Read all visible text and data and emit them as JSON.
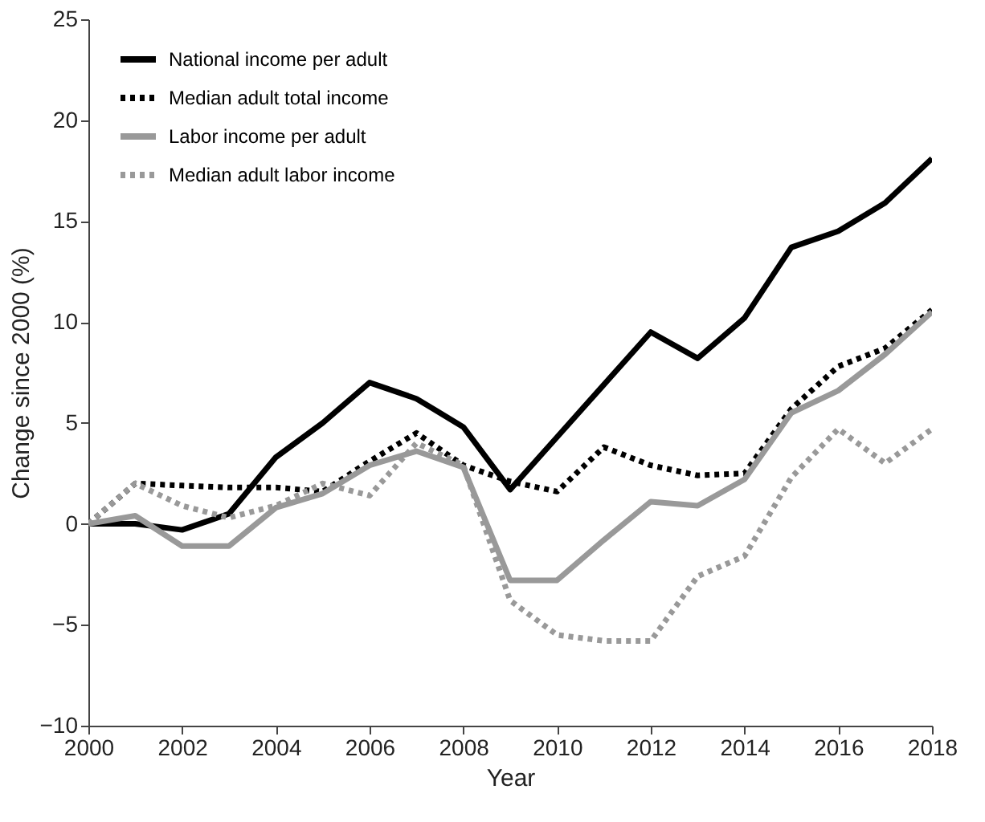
{
  "chart_data": {
    "type": "line",
    "xlabel": "Year",
    "ylabel": "Change since 2000 (%)",
    "x": [
      2000,
      2001,
      2002,
      2003,
      2004,
      2005,
      2006,
      2007,
      2008,
      2009,
      2010,
      2011,
      2012,
      2013,
      2014,
      2015,
      2016,
      2017,
      2018
    ],
    "xlim": [
      2000,
      2018
    ],
    "xticks": [
      2000,
      2002,
      2004,
      2006,
      2008,
      2010,
      2012,
      2014,
      2016,
      2018
    ],
    "ylim": [
      -10,
      25
    ],
    "yticks": [
      -10,
      -5,
      0,
      5,
      10,
      15,
      20,
      25
    ],
    "grid": false,
    "legend": "top left",
    "series": [
      {
        "name": "National income per adult",
        "color": "#000000",
        "line_style": "solid",
        "values": [
          0,
          0,
          -0.3,
          0.5,
          3.3,
          5,
          7,
          6.2,
          4.8,
          1.7,
          4.3,
          6.9,
          9.5,
          8.2,
          10.2,
          13.7,
          14.5,
          15.9,
          18.1
        ]
      },
      {
        "name": "Median adult total income",
        "color": "#000000",
        "line_style": "dotted",
        "values": [
          0,
          2,
          1.9,
          1.8,
          1.8,
          1.6,
          3.1,
          4.5,
          2.9,
          2.1,
          1.6,
          3.8,
          2.9,
          2.4,
          2.5,
          5.7,
          7.8,
          8.7,
          10.6
        ]
      },
      {
        "name": "Labor income per adult",
        "color": "#999999",
        "line_style": "solid",
        "values": [
          0,
          0.4,
          -1.1,
          -1.1,
          0.8,
          1.5,
          2.9,
          3.6,
          2.8,
          -2.8,
          -2.8,
          -0.8,
          1.1,
          0.9,
          2.2,
          5.5,
          6.6,
          8.4,
          10.5
        ]
      },
      {
        "name": "Median adult labor income",
        "color": "#999999",
        "line_style": "dotted",
        "values": [
          0,
          2,
          0.9,
          0.3,
          0.9,
          2,
          1.4,
          4,
          2.9,
          -3.8,
          -5.5,
          -5.8,
          -5.8,
          -2.6,
          -1.6,
          2.3,
          4.7,
          3,
          4.7
        ]
      }
    ]
  }
}
